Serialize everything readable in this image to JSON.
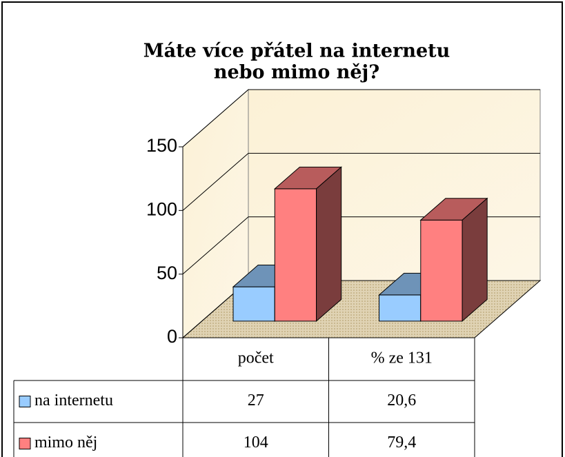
{
  "chart_data": {
    "type": "bar3d",
    "title": [
      "Máte více přátel na internetu",
      "nebo mimo něj?"
    ],
    "categories": [
      "počet",
      "% ze 131"
    ],
    "series": [
      {
        "name": "na internetu",
        "color": "#99ccff",
        "values": [
          27,
          20.6
        ],
        "value_labels": [
          "27",
          "20,6"
        ]
      },
      {
        "name": "mimo něj",
        "color": "#ff8080",
        "values": [
          104,
          79.4
        ],
        "value_labels": [
          "104",
          "79,4"
        ]
      }
    ],
    "ylim": [
      0,
      150
    ],
    "yticks": [
      0,
      50,
      100,
      150
    ],
    "grid": true,
    "data_table": true
  }
}
